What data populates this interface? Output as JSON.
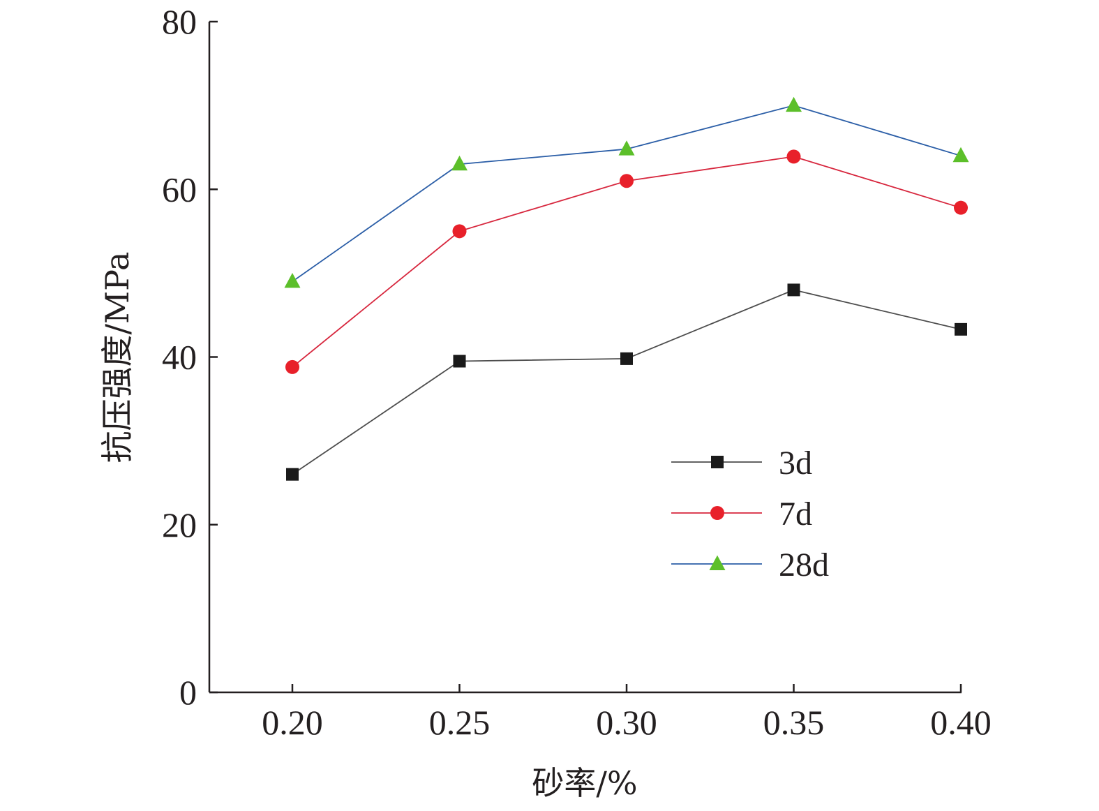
{
  "chart_data": {
    "type": "line",
    "title": "",
    "xlabel": "砂率/%",
    "ylabel": "抗压强度/MPa",
    "x": [
      0.2,
      0.25,
      0.3,
      0.35,
      0.4
    ],
    "x_tick_labels": [
      "0.20",
      "0.25",
      "0.30",
      "0.35",
      "0.40"
    ],
    "y_ticks": [
      0,
      20,
      40,
      60,
      80
    ],
    "y_tick_labels": [
      "0",
      "20",
      "40",
      "60",
      "80"
    ],
    "ylim": [
      0,
      80
    ],
    "grid": false,
    "legend_position": "right-center",
    "series": [
      {
        "name": "3d",
        "values": [
          26.0,
          39.5,
          39.8,
          48.0,
          43.3
        ],
        "line_color": "#4d4d4d",
        "marker": "square",
        "marker_color": "#1a1a1a"
      },
      {
        "name": "7d",
        "values": [
          38.8,
          55.0,
          61.0,
          63.9,
          57.8
        ],
        "line_color": "#d7263d",
        "marker": "circle",
        "marker_color": "#e8202a"
      },
      {
        "name": "28d",
        "values": [
          49.0,
          63.0,
          64.8,
          70.0,
          64.0
        ],
        "line_color": "#2b5ea7",
        "marker": "triangle",
        "marker_color": "#5cbf2a"
      }
    ]
  }
}
